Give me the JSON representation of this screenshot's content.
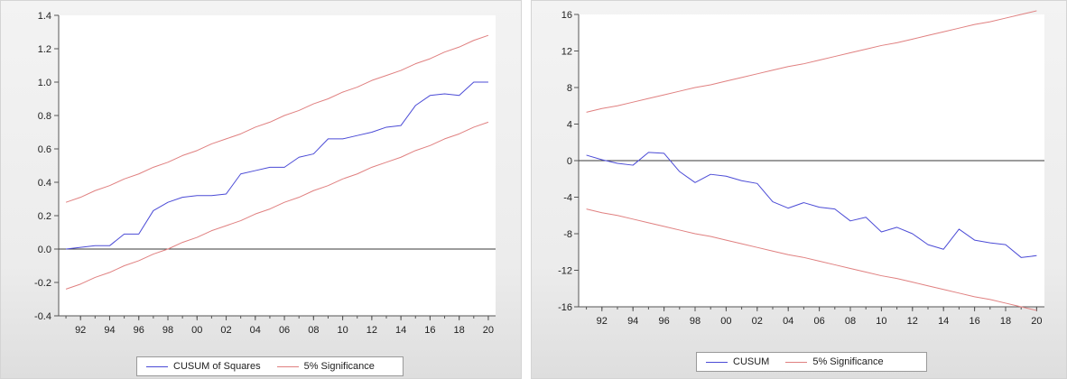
{
  "chart_data": [
    {
      "type": "line",
      "title": "",
      "xlabel": "",
      "ylabel": "",
      "x": [
        1991,
        1992,
        1993,
        1994,
        1995,
        1996,
        1997,
        1998,
        1999,
        2000,
        2001,
        2002,
        2003,
        2004,
        2005,
        2006,
        2007,
        2008,
        2009,
        2010,
        2011,
        2012,
        2013,
        2014,
        2015,
        2016,
        2017,
        2018,
        2019,
        2020
      ],
      "x_tick_values": [
        1992,
        1994,
        1996,
        1998,
        2000,
        2002,
        2004,
        2006,
        2008,
        2010,
        2012,
        2014,
        2016,
        2018,
        2020
      ],
      "x_tick_labels": [
        "92",
        "94",
        "96",
        "98",
        "00",
        "02",
        "04",
        "06",
        "08",
        "10",
        "12",
        "14",
        "16",
        "18",
        "20"
      ],
      "xlim": [
        1990.5,
        2020.5
      ],
      "ylim": [
        -0.4,
        1.4
      ],
      "y_ticks": [
        -0.4,
        -0.2,
        0.0,
        0.2,
        0.4,
        0.6,
        0.8,
        1.0,
        1.2,
        1.4
      ],
      "y_tick_labels": [
        "-0.4",
        "-0.2",
        "0.0",
        "0.2",
        "0.4",
        "0.6",
        "0.8",
        "1.0",
        "1.2",
        "1.4"
      ],
      "zero_line": 0,
      "grid": false,
      "legend_position": "bottom",
      "series": [
        {
          "name": "CUSUM of Squares",
          "color": "#4b4bd6",
          "values": [
            0.0,
            0.01,
            0.02,
            0.02,
            0.09,
            0.09,
            0.23,
            0.28,
            0.31,
            0.32,
            0.32,
            0.33,
            0.45,
            0.47,
            0.49,
            0.49,
            0.55,
            0.57,
            0.66,
            0.66,
            0.68,
            0.7,
            0.73,
            0.74,
            0.86,
            0.92,
            0.93,
            0.92,
            1.0,
            1.0
          ]
        },
        {
          "name": "5% Significance",
          "color": "#e08080",
          "values": [
            0.28,
            0.31,
            0.35,
            0.38,
            0.42,
            0.45,
            0.49,
            0.52,
            0.56,
            0.59,
            0.63,
            0.66,
            0.69,
            0.73,
            0.76,
            0.8,
            0.83,
            0.87,
            0.9,
            0.94,
            0.97,
            1.01,
            1.04,
            1.07,
            1.11,
            1.14,
            1.18,
            1.21,
            1.25,
            1.28
          ]
        },
        {
          "name": "5% Significance",
          "color": "#e08080",
          "values": [
            -0.24,
            -0.21,
            -0.17,
            -0.14,
            -0.1,
            -0.07,
            -0.03,
            0.0,
            0.04,
            0.07,
            0.11,
            0.14,
            0.17,
            0.21,
            0.24,
            0.28,
            0.31,
            0.35,
            0.38,
            0.42,
            0.45,
            0.49,
            0.52,
            0.55,
            0.59,
            0.62,
            0.66,
            0.69,
            0.73,
            0.76
          ]
        }
      ]
    },
    {
      "type": "line",
      "title": "",
      "xlabel": "",
      "ylabel": "",
      "x": [
        1991,
        1992,
        1993,
        1994,
        1995,
        1996,
        1997,
        1998,
        1999,
        2000,
        2001,
        2002,
        2003,
        2004,
        2005,
        2006,
        2007,
        2008,
        2009,
        2010,
        2011,
        2012,
        2013,
        2014,
        2015,
        2016,
        2017,
        2018,
        2019,
        2020
      ],
      "x_tick_values": [
        1992,
        1994,
        1996,
        1998,
        2000,
        2002,
        2004,
        2006,
        2008,
        2010,
        2012,
        2014,
        2016,
        2018,
        2020
      ],
      "x_tick_labels": [
        "92",
        "94",
        "96",
        "98",
        "00",
        "02",
        "04",
        "06",
        "08",
        "10",
        "12",
        "14",
        "16",
        "18",
        "20"
      ],
      "xlim": [
        1990.5,
        2020.5
      ],
      "ylim": [
        -16,
        16
      ],
      "y_ticks": [
        -16,
        -12,
        -8,
        -4,
        0,
        4,
        8,
        12,
        16
      ],
      "y_tick_labels": [
        "-16",
        "-12",
        "-8",
        "-4",
        "0",
        "4",
        "8",
        "12",
        "16"
      ],
      "zero_line": 0,
      "grid": false,
      "legend_position": "bottom",
      "series": [
        {
          "name": "CUSUM",
          "color": "#4b4bd6",
          "values": [
            0.6,
            0.1,
            -0.3,
            -0.5,
            0.9,
            0.8,
            -1.2,
            -2.4,
            -1.5,
            -1.7,
            -2.2,
            -2.5,
            -4.5,
            -5.2,
            -4.6,
            -5.1,
            -5.3,
            -6.6,
            -6.2,
            -7.8,
            -7.3,
            -8.0,
            -9.2,
            -9.7,
            -7.5,
            -8.7,
            -9.0,
            -9.2,
            -10.6,
            -10.4
          ]
        },
        {
          "name": "5% Significance",
          "color": "#e08080",
          "values": [
            5.3,
            5.7,
            6.0,
            6.4,
            6.8,
            7.2,
            7.6,
            8.0,
            8.3,
            8.7,
            9.1,
            9.5,
            9.9,
            10.3,
            10.6,
            11.0,
            11.4,
            11.8,
            12.2,
            12.6,
            12.9,
            13.3,
            13.7,
            14.1,
            14.5,
            14.9,
            15.2,
            15.6,
            16.0,
            16.4
          ]
        },
        {
          "name": "5% Significance",
          "color": "#e08080",
          "values": [
            -5.3,
            -5.7,
            -6.0,
            -6.4,
            -6.8,
            -7.2,
            -7.6,
            -8.0,
            -8.3,
            -8.7,
            -9.1,
            -9.5,
            -9.9,
            -10.3,
            -10.6,
            -11.0,
            -11.4,
            -11.8,
            -12.2,
            -12.6,
            -12.9,
            -13.3,
            -13.7,
            -14.1,
            -14.5,
            -14.9,
            -15.2,
            -15.6,
            -16.0,
            -16.4
          ]
        }
      ]
    }
  ],
  "legends": [
    {
      "items": [
        {
          "label": "CUSUM of Squares",
          "color": "#4b4bd6"
        },
        {
          "label": "5% Significance",
          "color": "#e08080"
        }
      ]
    },
    {
      "items": [
        {
          "label": "CUSUM",
          "color": "#4b4bd6"
        },
        {
          "label": "5% Significance",
          "color": "#e08080"
        }
      ]
    }
  ]
}
